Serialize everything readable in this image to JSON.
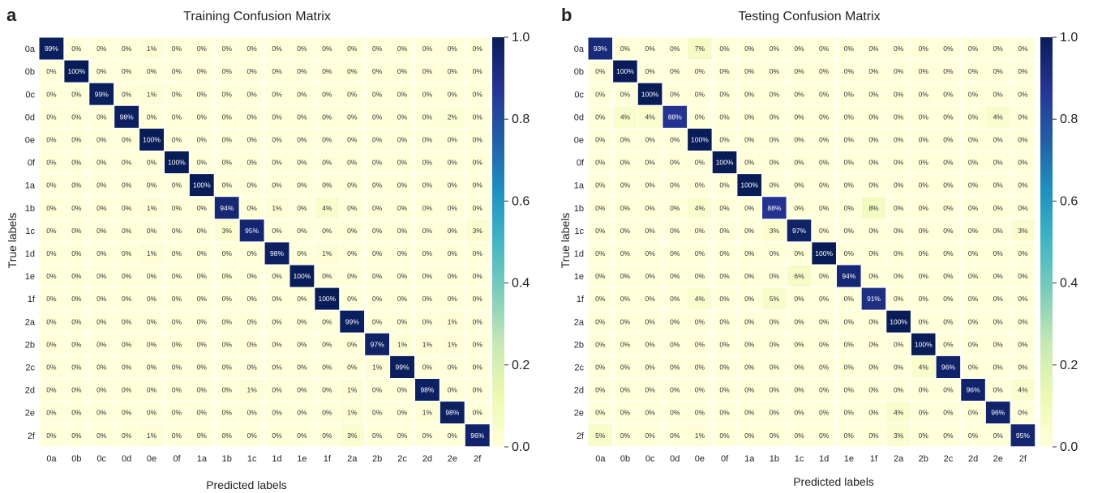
{
  "chart_data": [
    {
      "type": "heatmap",
      "panel_label": "a",
      "title": "Training Confusion Matrix",
      "xlabel": "Predicted labels",
      "ylabel": "True labels",
      "categories": [
        "0a",
        "0b",
        "0c",
        "0d",
        "0e",
        "0f",
        "1a",
        "1b",
        "1c",
        "1d",
        "1e",
        "1f",
        "2a",
        "2b",
        "2c",
        "2d",
        "2e",
        "2f"
      ],
      "colorbar": {
        "range": [
          0.0,
          1.0
        ],
        "ticks": [
          "0.0",
          "0.2",
          "0.4",
          "0.6",
          "0.8",
          "1.0"
        ],
        "colormap": "YlGnBu"
      },
      "values": [
        [
          99,
          0,
          0,
          0,
          1,
          0,
          0,
          0,
          0,
          0,
          0,
          0,
          0,
          0,
          0,
          0,
          0,
          0
        ],
        [
          0,
          100,
          0,
          0,
          0,
          0,
          0,
          0,
          0,
          0,
          0,
          0,
          0,
          0,
          0,
          0,
          0,
          0
        ],
        [
          0,
          0,
          99,
          0,
          1,
          0,
          0,
          0,
          0,
          0,
          0,
          0,
          0,
          0,
          0,
          0,
          0,
          0
        ],
        [
          0,
          0,
          0,
          98,
          0,
          0,
          0,
          0,
          0,
          0,
          0,
          0,
          0,
          0,
          0,
          0,
          2,
          0
        ],
        [
          0,
          0,
          0,
          0,
          100,
          0,
          0,
          0,
          0,
          0,
          0,
          0,
          0,
          0,
          0,
          0,
          0,
          0
        ],
        [
          0,
          0,
          0,
          0,
          0,
          100,
          0,
          0,
          0,
          0,
          0,
          0,
          0,
          0,
          0,
          0,
          0,
          0
        ],
        [
          0,
          0,
          0,
          0,
          0,
          0,
          100,
          0,
          0,
          0,
          0,
          0,
          0,
          0,
          0,
          0,
          0,
          0
        ],
        [
          0,
          0,
          0,
          0,
          1,
          0,
          0,
          94,
          0,
          1,
          0,
          4,
          0,
          0,
          0,
          0,
          0,
          0
        ],
        [
          0,
          0,
          0,
          0,
          0,
          0,
          0,
          3,
          95,
          0,
          0,
          0,
          0,
          0,
          0,
          0,
          0,
          3
        ],
        [
          0,
          0,
          0,
          0,
          1,
          0,
          0,
          0,
          0,
          98,
          0,
          1,
          0,
          0,
          0,
          0,
          0,
          0
        ],
        [
          0,
          0,
          0,
          0,
          0,
          0,
          0,
          0,
          0,
          0,
          100,
          0,
          0,
          0,
          0,
          0,
          0,
          0
        ],
        [
          0,
          0,
          0,
          0,
          0,
          0,
          0,
          0,
          0,
          0,
          0,
          100,
          0,
          0,
          0,
          0,
          0,
          0
        ],
        [
          0,
          0,
          0,
          0,
          0,
          0,
          0,
          0,
          0,
          0,
          0,
          0,
          99,
          0,
          0,
          0,
          1,
          0
        ],
        [
          0,
          0,
          0,
          0,
          0,
          0,
          0,
          0,
          0,
          0,
          0,
          0,
          0,
          97,
          1,
          1,
          1,
          0
        ],
        [
          0,
          0,
          0,
          0,
          0,
          0,
          0,
          0,
          0,
          0,
          0,
          0,
          0,
          1,
          99,
          0,
          0,
          0
        ],
        [
          0,
          0,
          0,
          0,
          0,
          0,
          0,
          0,
          1,
          0,
          0,
          0,
          1,
          0,
          0,
          98,
          0,
          0
        ],
        [
          0,
          0,
          0,
          0,
          0,
          0,
          0,
          0,
          0,
          0,
          0,
          0,
          1,
          0,
          0,
          1,
          98,
          0
        ],
        [
          0,
          0,
          0,
          0,
          1,
          0,
          0,
          0,
          0,
          0,
          0,
          0,
          3,
          0,
          0,
          0,
          0,
          96
        ]
      ]
    },
    {
      "type": "heatmap",
      "panel_label": "b",
      "title": "Testing Confusion Matrix",
      "xlabel": "Predicted labels",
      "ylabel": "True labels",
      "categories": [
        "0a",
        "0b",
        "0c",
        "0d",
        "0e",
        "0f",
        "1a",
        "1b",
        "1c",
        "1d",
        "1e",
        "1f",
        "2a",
        "2b",
        "2c",
        "2d",
        "2e",
        "2f"
      ],
      "colorbar": {
        "range": [
          0.0,
          1.0
        ],
        "ticks": [
          "0.0",
          "0.2",
          "0.4",
          "0.6",
          "0.8",
          "1.0"
        ],
        "colormap": "YlGnBu"
      },
      "values": [
        [
          93,
          0,
          0,
          0,
          7,
          0,
          0,
          0,
          0,
          0,
          0,
          0,
          0,
          0,
          0,
          0,
          0,
          0
        ],
        [
          0,
          100,
          0,
          0,
          0,
          0,
          0,
          0,
          0,
          0,
          0,
          0,
          0,
          0,
          0,
          0,
          0,
          0
        ],
        [
          0,
          0,
          100,
          0,
          0,
          0,
          0,
          0,
          0,
          0,
          0,
          0,
          0,
          0,
          0,
          0,
          0,
          0
        ],
        [
          0,
          4,
          4,
          88,
          0,
          0,
          0,
          0,
          0,
          0,
          0,
          0,
          0,
          0,
          0,
          0,
          4,
          0
        ],
        [
          0,
          0,
          0,
          0,
          100,
          0,
          0,
          0,
          0,
          0,
          0,
          0,
          0,
          0,
          0,
          0,
          0,
          0
        ],
        [
          0,
          0,
          0,
          0,
          0,
          100,
          0,
          0,
          0,
          0,
          0,
          0,
          0,
          0,
          0,
          0,
          0,
          0
        ],
        [
          0,
          0,
          0,
          0,
          0,
          0,
          100,
          0,
          0,
          0,
          0,
          0,
          0,
          0,
          0,
          0,
          0,
          0
        ],
        [
          0,
          0,
          0,
          0,
          4,
          0,
          0,
          88,
          0,
          0,
          0,
          8,
          0,
          0,
          0,
          0,
          0,
          0
        ],
        [
          0,
          0,
          0,
          0,
          0,
          0,
          0,
          3,
          97,
          0,
          0,
          0,
          0,
          0,
          0,
          0,
          0,
          3
        ],
        [
          0,
          0,
          0,
          0,
          0,
          0,
          0,
          0,
          0,
          100,
          0,
          0,
          0,
          0,
          0,
          0,
          0,
          0
        ],
        [
          0,
          0,
          0,
          0,
          0,
          0,
          0,
          0,
          6,
          0,
          94,
          0,
          0,
          0,
          0,
          0,
          0,
          0
        ],
        [
          0,
          0,
          0,
          0,
          4,
          0,
          0,
          5,
          0,
          0,
          0,
          91,
          0,
          0,
          0,
          0,
          0,
          0
        ],
        [
          0,
          0,
          0,
          0,
          0,
          0,
          0,
          0,
          0,
          0,
          0,
          0,
          100,
          0,
          0,
          0,
          0,
          0
        ],
        [
          0,
          0,
          0,
          0,
          0,
          0,
          0,
          0,
          0,
          0,
          0,
          0,
          0,
          100,
          0,
          0,
          0,
          0
        ],
        [
          0,
          0,
          0,
          0,
          0,
          0,
          0,
          0,
          0,
          0,
          0,
          0,
          0,
          4,
          96,
          0,
          0,
          0
        ],
        [
          0,
          0,
          0,
          0,
          0,
          0,
          0,
          0,
          0,
          0,
          0,
          0,
          0,
          0,
          0,
          96,
          0,
          4
        ],
        [
          0,
          0,
          0,
          0,
          0,
          0,
          0,
          0,
          0,
          0,
          0,
          0,
          4,
          0,
          0,
          0,
          96,
          0
        ],
        [
          5,
          0,
          0,
          0,
          1,
          0,
          0,
          0,
          0,
          0,
          0,
          0,
          3,
          0,
          0,
          0,
          0,
          95
        ]
      ]
    }
  ]
}
